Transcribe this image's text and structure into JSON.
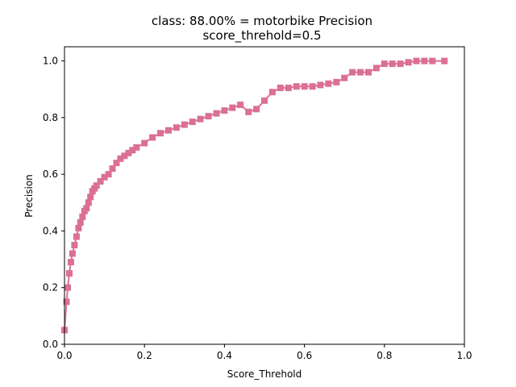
{
  "chart_data": {
    "type": "line",
    "title": "class: 88.00% = motorbike Precision",
    "subtitle": "score_threhold=0.5",
    "xlabel": "Score_Threhold",
    "ylabel": "Precision",
    "xlim": [
      0.0,
      1.0
    ],
    "ylim": [
      0.0,
      1.05
    ],
    "xticks": [
      "0.0",
      "0.2",
      "0.4",
      "0.6",
      "0.8",
      "1.0"
    ],
    "yticks": [
      "0.0",
      "0.2",
      "0.4",
      "0.6",
      "0.8",
      "1.0"
    ],
    "grid": false,
    "marker": "square",
    "series": [
      {
        "color": "#db7093",
        "x": [
          0.0,
          0.005,
          0.008,
          0.012,
          0.016,
          0.02,
          0.025,
          0.03,
          0.035,
          0.04,
          0.045,
          0.05,
          0.055,
          0.06,
          0.065,
          0.07,
          0.075,
          0.08,
          0.09,
          0.1,
          0.11,
          0.12,
          0.13,
          0.14,
          0.15,
          0.16,
          0.17,
          0.18,
          0.2,
          0.22,
          0.24,
          0.26,
          0.28,
          0.3,
          0.32,
          0.34,
          0.36,
          0.38,
          0.4,
          0.42,
          0.44,
          0.46,
          0.48,
          0.5,
          0.52,
          0.54,
          0.56,
          0.58,
          0.6,
          0.62,
          0.64,
          0.66,
          0.68,
          0.7,
          0.72,
          0.74,
          0.76,
          0.78,
          0.8,
          0.82,
          0.84,
          0.86,
          0.88,
          0.9,
          0.92,
          0.95
        ],
        "y": [
          0.05,
          0.15,
          0.2,
          0.25,
          0.29,
          0.32,
          0.35,
          0.38,
          0.41,
          0.43,
          0.45,
          0.47,
          0.48,
          0.5,
          0.52,
          0.54,
          0.55,
          0.56,
          0.575,
          0.59,
          0.6,
          0.62,
          0.64,
          0.655,
          0.665,
          0.675,
          0.685,
          0.695,
          0.71,
          0.73,
          0.745,
          0.755,
          0.765,
          0.775,
          0.785,
          0.795,
          0.805,
          0.815,
          0.825,
          0.835,
          0.845,
          0.82,
          0.83,
          0.86,
          0.89,
          0.905,
          0.905,
          0.91,
          0.91,
          0.91,
          0.915,
          0.92,
          0.925,
          0.94,
          0.96,
          0.96,
          0.96,
          0.975,
          0.99,
          0.99,
          0.99,
          0.995,
          1.0,
          1.0,
          1.0,
          1.0
        ]
      }
    ]
  }
}
